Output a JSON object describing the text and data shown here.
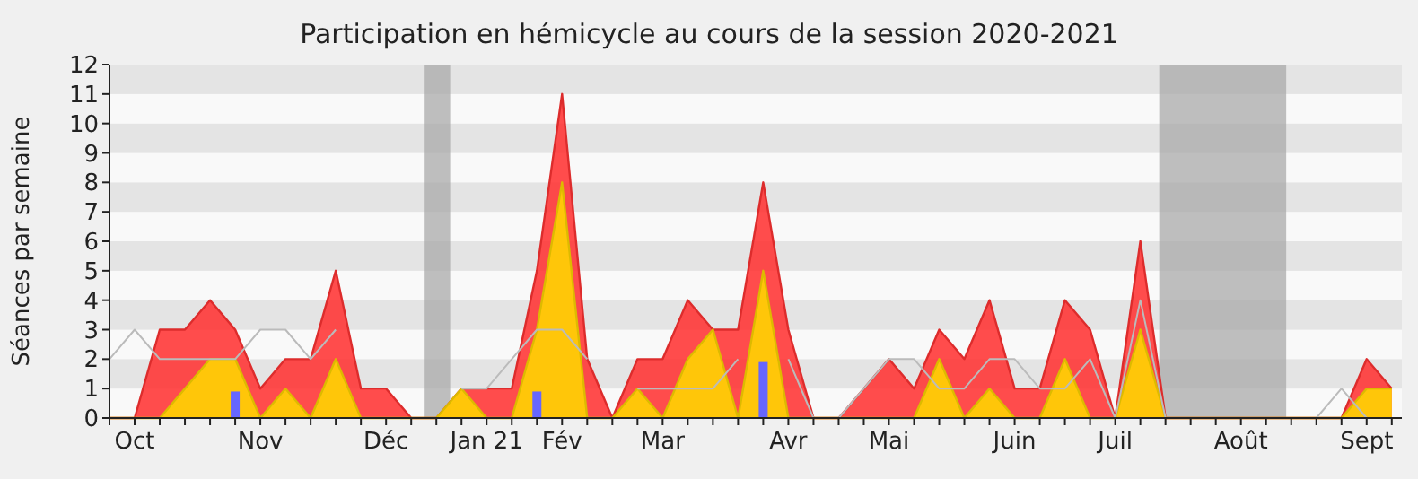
{
  "chart_data": {
    "type": "area",
    "title": "Participation en hémicycle au cours de la session 2020-2021",
    "ylabel": "Séances par semaine",
    "categories": [
      null,
      "Oct",
      null,
      null,
      null,
      null,
      "Nov",
      null,
      null,
      null,
      null,
      "Déc",
      null,
      null,
      null,
      "Jan 21",
      null,
      null,
      "Fév",
      null,
      null,
      null,
      "Mar",
      null,
      null,
      null,
      null,
      "Avr",
      null,
      null,
      null,
      "Mai",
      null,
      null,
      null,
      null,
      "Juin",
      null,
      null,
      null,
      "Juil",
      null,
      null,
      null,
      null,
      "Août",
      null,
      null,
      null,
      null,
      "Sept",
      null
    ],
    "series": [
      {
        "color": "#ff3333",
        "values": [
          0,
          0,
          3,
          3,
          4,
          3,
          1,
          2,
          2,
          5,
          1,
          1,
          0,
          0,
          1,
          1,
          1,
          5,
          11,
          2,
          0,
          2,
          2,
          4,
          3,
          3,
          8,
          3,
          0,
          0,
          1,
          2,
          1,
          3,
          2,
          4,
          1,
          1,
          4,
          3,
          0,
          6,
          0,
          0,
          0,
          0,
          0,
          0,
          0,
          0,
          2,
          1
        ]
      },
      {
        "color": "#ffd700",
        "values": [
          0,
          0,
          0,
          1,
          2,
          2,
          0,
          1,
          0,
          2,
          0,
          0,
          0,
          0,
          1,
          0,
          0,
          3,
          8,
          0,
          0,
          1,
          0,
          2,
          3,
          0,
          5,
          0,
          0,
          0,
          0,
          0,
          0,
          2,
          0,
          1,
          0,
          0,
          2,
          0,
          0,
          3,
          0,
          0,
          0,
          0,
          0,
          0,
          0,
          0,
          1,
          1
        ]
      },
      {
        "type": "bar",
        "color": "#6666ff",
        "values": [
          null,
          null,
          null,
          null,
          null,
          0.9,
          null,
          null,
          null,
          null,
          null,
          null,
          null,
          null,
          null,
          null,
          null,
          0.9,
          null,
          null,
          null,
          null,
          null,
          null,
          null,
          null,
          1.9,
          null,
          null,
          null,
          null,
          null,
          null,
          null,
          null,
          null,
          null,
          null,
          null,
          null,
          null,
          null,
          null,
          null,
          null,
          null,
          null,
          null,
          null,
          null,
          null,
          null
        ]
      },
      {
        "type": "line",
        "color": "#bbbbbb",
        "values": [
          2,
          3,
          2,
          2,
          2,
          2,
          3,
          3,
          2,
          3,
          null,
          null,
          null,
          null,
          1,
          1,
          2,
          3,
          3,
          2,
          null,
          1,
          1,
          1,
          1,
          2,
          null,
          2,
          0,
          0,
          1,
          2,
          2,
          1,
          1,
          2,
          2,
          1,
          1,
          2,
          0,
          4,
          0,
          0,
          0,
          0,
          0,
          0,
          0,
          1,
          0,
          null
        ]
      }
    ],
    "ylim": [
      0,
      12
    ],
    "yticks": [
      0,
      1,
      2,
      3,
      4,
      5,
      6,
      7,
      8,
      9,
      10,
      11,
      12
    ]
  }
}
